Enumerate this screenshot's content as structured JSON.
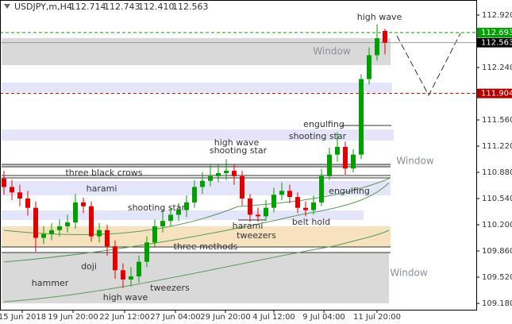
{
  "header": {
    "symbol": "USDJPY,m,H4",
    "ohlc": [
      112.714,
      112.743,
      {
        "value": 112.41,
        "label": "112.410"
      },
      112.563
    ]
  },
  "chart_data": {
    "type": "candlestick",
    "open": [
      110.8,
      110.69,
      110.62,
      110.54,
      110.42,
      110.03,
      110.08,
      110.13,
      110.18,
      110.23,
      110.49,
      110.44,
      110.05,
      110.13,
      109.92,
      109.61,
      109.49,
      109.53,
      109.72,
      109.97,
      110.18,
      110.25,
      110.33,
      110.39,
      110.49,
      110.69,
      110.77,
      110.83,
      110.87,
      110.9,
      110.83,
      110.54,
      110.33,
      110.31,
      110.42,
      110.59,
      110.64,
      110.56,
      110.42,
      110.39,
      110.49,
      110.83,
      111.11,
      111.21,
      110.93,
      111.11,
      112.09,
      112.4,
      112.714
    ],
    "high": [
      110.9,
      110.78,
      110.72,
      110.64,
      110.5,
      110.18,
      110.22,
      110.27,
      110.33,
      110.6,
      110.55,
      110.5,
      110.22,
      110.2,
      110.0,
      109.7,
      109.65,
      109.8,
      110.05,
      110.27,
      110.4,
      110.42,
      110.48,
      110.58,
      110.78,
      110.88,
      110.99,
      110.98,
      111.05,
      110.98,
      110.9,
      110.6,
      110.42,
      110.52,
      110.68,
      110.75,
      110.72,
      110.62,
      110.5,
      110.58,
      110.92,
      111.2,
      111.4,
      111.28,
      111.18,
      112.15,
      112.5,
      112.8,
      112.743
    ],
    "low": [
      110.59,
      110.52,
      110.44,
      110.32,
      109.85,
      109.95,
      110.0,
      110.05,
      110.1,
      110.15,
      110.35,
      109.98,
      109.97,
      109.8,
      109.5,
      109.38,
      109.4,
      109.45,
      109.65,
      109.9,
      110.1,
      110.18,
      110.25,
      110.3,
      110.42,
      110.6,
      110.7,
      110.75,
      110.78,
      110.72,
      110.45,
      110.24,
      110.24,
      110.25,
      110.36,
      110.52,
      110.48,
      110.35,
      110.31,
      110.33,
      110.44,
      110.78,
      111.02,
      110.85,
      110.88,
      111.05,
      112.02,
      112.33,
      112.41
    ],
    "close": [
      110.69,
      110.62,
      110.54,
      110.42,
      110.03,
      110.08,
      110.13,
      110.18,
      110.23,
      110.49,
      110.44,
      110.05,
      110.13,
      109.92,
      109.61,
      109.49,
      109.53,
      109.72,
      109.97,
      110.18,
      110.25,
      110.33,
      110.39,
      110.49,
      110.69,
      110.77,
      110.83,
      110.87,
      110.9,
      110.83,
      110.54,
      110.33,
      110.31,
      110.42,
      110.59,
      110.64,
      110.56,
      110.42,
      110.39,
      110.49,
      110.83,
      111.11,
      111.21,
      110.93,
      111.11,
      112.09,
      112.4,
      112.62,
      112.563
    ],
    "up_color": "#00a000",
    "down_color": "#e00000",
    "ylim": [
      109.098,
      113.116
    ],
    "yticks": [
      {
        "value": 112.92,
        "label": "112.920"
      },
      {
        "value": 112.58,
        "label": "112.580"
      },
      {
        "value": 112.24,
        "label": "112.240"
      },
      {
        "value": 111.9,
        "label": "111.900"
      },
      {
        "value": 111.56,
        "label": "111.560"
      },
      {
        "value": 111.22,
        "label": "111.220"
      },
      {
        "value": 110.88,
        "label": "110.880"
      },
      {
        "value": 110.54,
        "label": "110.540"
      },
      {
        "value": 110.2,
        "label": "110.200"
      },
      {
        "value": 109.86,
        "label": "109.860"
      },
      {
        "value": 109.52,
        "label": "109.520"
      },
      {
        "value": 109.18,
        "label": "109.180"
      }
    ],
    "price_tags": [
      {
        "value": 112.693,
        "color": "#00a000",
        "style": "dashed"
      },
      {
        "value": 112.563,
        "color": "#000000",
        "style": "solid"
      },
      {
        "value": 111.904,
        "color": "#b00000",
        "style": "dashed"
      }
    ],
    "xticks": [
      "15 Jun 2018",
      "19 Jun 20:00",
      "22 Jun 12:00",
      "27 Jun 04:00",
      "29 Jun 20:00",
      "4 Jul 12:00",
      "9 Jul 04:00",
      "11 Jul 20:00"
    ],
    "annotations": [
      "high wave",
      "Window",
      "engulfing",
      "shooting star",
      "Window",
      "high wave",
      "shooting star",
      "three black crows",
      "harami",
      "engulfing",
      "shooting star",
      "harami",
      "belt hold",
      "tweezers",
      "three methods",
      "doji",
      "hammer",
      "Window",
      "tweezers",
      "high wave"
    ]
  }
}
